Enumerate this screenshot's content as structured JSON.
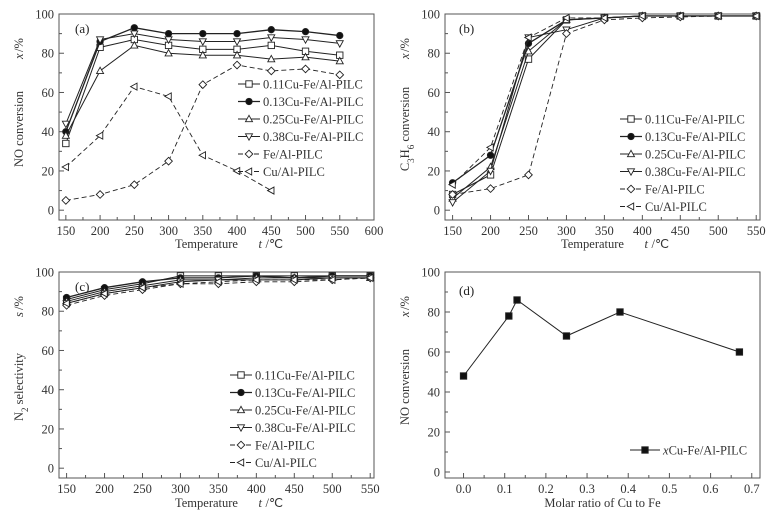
{
  "chart_data": [
    {
      "type": "line",
      "panel_label": "(a)",
      "title": "",
      "xlabel": "Temperature",
      "xlabel_symbol": "t",
      "xlabel_unit": "/℃",
      "ylabel": "NO conversion",
      "ylabel_symbol": "x",
      "ylabel_unit": "/%",
      "xlim": [
        140,
        600
      ],
      "ylim": [
        -5,
        100
      ],
      "xticks": [
        150,
        200,
        250,
        300,
        350,
        400,
        450,
        500,
        550,
        600
      ],
      "yticks": [
        0,
        20,
        40,
        60,
        80,
        100
      ],
      "grid": false,
      "legend_position": "middle-right",
      "series": [
        {
          "name": "0.11Cu-Fe/Al-PILC",
          "marker": "square",
          "line": "solid",
          "x": [
            150,
            200,
            250,
            300,
            350,
            400,
            450,
            500,
            550
          ],
          "values": [
            34,
            83,
            87,
            84,
            82,
            82,
            84,
            81,
            79
          ]
        },
        {
          "name": "0.13Cu-Fe/Al-PILC",
          "marker": "circle-filled",
          "line": "solid",
          "x": [
            150,
            200,
            250,
            300,
            350,
            400,
            450,
            500,
            550
          ],
          "values": [
            40,
            86,
            93,
            90,
            90,
            90,
            92,
            91,
            89
          ]
        },
        {
          "name": "0.25Cu-Fe/Al-PILC",
          "marker": "triangle-up",
          "line": "solid",
          "x": [
            150,
            200,
            250,
            300,
            350,
            400,
            450,
            500,
            550
          ],
          "values": [
            38,
            71,
            84,
            80,
            79,
            79,
            77,
            78,
            76
          ]
        },
        {
          "name": "0.38Cu-Fe/Al-PILC",
          "marker": "triangle-down",
          "line": "solid",
          "x": [
            150,
            200,
            250,
            300,
            350,
            400,
            450,
            500,
            550
          ],
          "values": [
            44,
            87,
            90,
            87,
            86,
            86,
            88,
            87,
            85
          ]
        },
        {
          "name": "Fe/Al-PILC",
          "marker": "diamond",
          "line": "dashed",
          "x": [
            150,
            200,
            250,
            300,
            350,
            400,
            450,
            500,
            550
          ],
          "values": [
            5,
            8,
            13,
            25,
            64,
            74,
            71,
            72,
            69
          ]
        },
        {
          "name": "Cu/Al-PILC",
          "marker": "triangle-left",
          "line": "dashed",
          "x": [
            150,
            200,
            250,
            300,
            350,
            400,
            450
          ],
          "values": [
            22,
            38,
            63,
            58,
            28,
            20,
            10
          ]
        }
      ]
    },
    {
      "type": "line",
      "panel_label": "(b)",
      "title": "",
      "xlabel": "Temperature",
      "xlabel_symbol": "t",
      "xlabel_unit": "/℃",
      "ylabel": "C3H6 conversion",
      "ylabel_symbol": "x",
      "ylabel_unit": "/%",
      "xlim": [
        140,
        555
      ],
      "ylim": [
        -5,
        100
      ],
      "xticks": [
        150,
        200,
        250,
        300,
        350,
        400,
        450,
        500,
        550
      ],
      "yticks": [
        0,
        20,
        40,
        60,
        80,
        100
      ],
      "grid": false,
      "legend_position": "lower-right",
      "series": [
        {
          "name": "0.11Cu-Fe/Al-PILC",
          "marker": "square",
          "line": "solid",
          "x": [
            150,
            200,
            250,
            300,
            350,
            400,
            450,
            500,
            550
          ],
          "values": [
            8,
            18,
            77,
            97,
            98,
            99,
            99,
            99,
            99
          ]
        },
        {
          "name": "0.13Cu-Fe/Al-PILC",
          "marker": "circle-filled",
          "line": "solid",
          "x": [
            150,
            200,
            250,
            300,
            350,
            400,
            450,
            500,
            550
          ],
          "values": [
            14,
            28,
            85,
            97,
            98,
            99,
            99,
            99,
            99
          ]
        },
        {
          "name": "0.25Cu-Fe/Al-PILC",
          "marker": "triangle-up",
          "line": "solid",
          "x": [
            150,
            200,
            250,
            300,
            350,
            400,
            450,
            500,
            550
          ],
          "values": [
            6,
            22,
            81,
            97,
            98,
            99,
            99,
            99,
            99
          ]
        },
        {
          "name": "0.38Cu-Fe/Al-PILC",
          "marker": "triangle-down",
          "line": "solid",
          "x": [
            150,
            200,
            250,
            300,
            350,
            400,
            450,
            500,
            550
          ],
          "values": [
            4,
            20,
            88,
            92,
            98,
            99,
            99,
            99,
            99
          ]
        },
        {
          "name": "Fe/Al-PILC",
          "marker": "diamond",
          "line": "dashed",
          "x": [
            150,
            200,
            250,
            300,
            350,
            400,
            450,
            500,
            550
          ],
          "values": [
            8,
            11,
            18,
            90,
            97,
            98,
            98.5,
            99,
            99
          ]
        },
        {
          "name": "Cu/Al-PILC",
          "marker": "triangle-left",
          "line": "dashed",
          "x": [
            150,
            200,
            250,
            300,
            350,
            400,
            450,
            500,
            550
          ],
          "values": [
            13,
            32,
            88,
            98,
            98,
            99,
            99,
            99,
            99
          ]
        }
      ]
    },
    {
      "type": "line",
      "panel_label": "(c)",
      "title": "",
      "xlabel": "Temperature",
      "xlabel_symbol": "t",
      "xlabel_unit": "/℃",
      "ylabel": "N2 selectivity",
      "ylabel_symbol": "s",
      "ylabel_unit": "/%",
      "xlim": [
        140,
        555
      ],
      "ylim": [
        -5,
        100
      ],
      "xticks": [
        150,
        200,
        250,
        300,
        350,
        400,
        450,
        500,
        550
      ],
      "yticks": [
        0,
        20,
        40,
        60,
        80,
        100
      ],
      "grid": false,
      "legend_position": "lower-right",
      "series": [
        {
          "name": "0.11Cu-Fe/Al-PILC",
          "marker": "square",
          "line": "solid",
          "x": [
            150,
            200,
            250,
            300,
            350,
            400,
            450,
            500,
            550
          ],
          "values": [
            86,
            91,
            94,
            98,
            98,
            98,
            98,
            98,
            98
          ]
        },
        {
          "name": "0.13Cu-Fe/Al-PILC",
          "marker": "circle-filled",
          "line": "solid",
          "x": [
            150,
            200,
            250,
            300,
            350,
            400,
            450,
            500,
            550
          ],
          "values": [
            87,
            92,
            95,
            97,
            97,
            98,
            97,
            98,
            98
          ]
        },
        {
          "name": "0.25Cu-Fe/Al-PILC",
          "marker": "triangle-up",
          "line": "solid",
          "x": [
            150,
            200,
            250,
            300,
            350,
            400,
            450,
            500,
            550
          ],
          "values": [
            85,
            90,
            93,
            96,
            96,
            97,
            97,
            97,
            97
          ]
        },
        {
          "name": "0.38Cu-Fe/Al-PILC",
          "marker": "triangle-down",
          "line": "solid",
          "x": [
            150,
            200,
            250,
            300,
            350,
            400,
            450,
            500,
            550
          ],
          "values": [
            84,
            89,
            92,
            95,
            96,
            96,
            96,
            97,
            97
          ]
        },
        {
          "name": "Fe/Al-PILC",
          "marker": "diamond",
          "line": "dashed",
          "x": [
            150,
            200,
            250,
            300,
            350,
            400,
            450,
            500,
            550
          ],
          "values": [
            83,
            88,
            91,
            94,
            94,
            95,
            95,
            96,
            97
          ]
        },
        {
          "name": "Cu/Al-PILC",
          "marker": "triangle-left",
          "line": "dashed",
          "x": [
            150,
            200,
            250,
            300,
            350,
            400,
            450,
            500,
            550
          ],
          "values": [
            84,
            89,
            92,
            94,
            95,
            96,
            96,
            96,
            97
          ]
        }
      ]
    },
    {
      "type": "line",
      "panel_label": "(d)",
      "title": "",
      "xlabel": "Molar ratio of Cu to Fe",
      "xlabel_symbol": "",
      "xlabel_unit": "",
      "ylabel": "NO conversion",
      "ylabel_symbol": "x",
      "ylabel_unit": "/%",
      "xlim": [
        -0.045,
        0.72
      ],
      "ylim": [
        -3,
        100
      ],
      "xticks": [
        0.0,
        0.1,
        0.2,
        0.3,
        0.4,
        0.5,
        0.6,
        0.7
      ],
      "xtick_labels": [
        "0.0",
        "0.1",
        "0.2",
        "0.3",
        "0.4",
        "0.5",
        "0.6",
        "0.7"
      ],
      "yticks": [
        0,
        20,
        40,
        60,
        80,
        100
      ],
      "grid": false,
      "legend_position": "lower-right",
      "series": [
        {
          "name": "xCu-Fe/Al-PILC",
          "marker": "square-filled",
          "line": "solid",
          "x": [
            0.0,
            0.11,
            0.13,
            0.25,
            0.38,
            0.67
          ],
          "values": [
            48,
            78,
            86,
            68,
            80,
            60
          ]
        }
      ]
    }
  ]
}
